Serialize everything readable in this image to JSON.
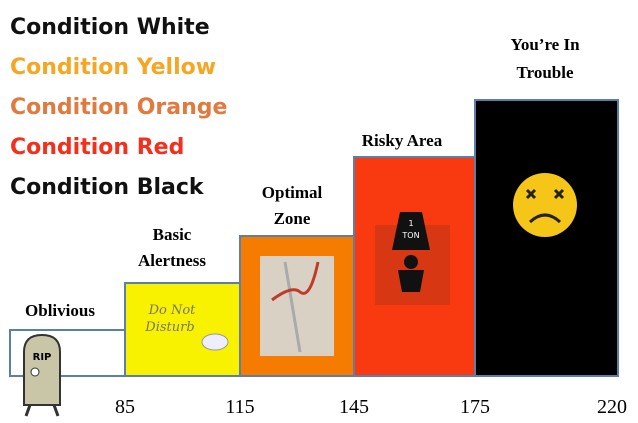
{
  "legend": [
    {
      "text": "Condition White",
      "color": "#111111"
    },
    {
      "text": "Condition Yellow",
      "color": "#f5a623"
    },
    {
      "text": "Condition Orange",
      "color": "#e07a3e"
    },
    {
      "text": "Condition Red",
      "color": "#f4301c"
    },
    {
      "text": "Condition Black",
      "color": "#111111"
    }
  ],
  "zones": [
    {
      "label": [
        "Oblivious"
      ],
      "color": "#ffffff"
    },
    {
      "label": [
        "Basic",
        "Alertness"
      ],
      "color": "#f8f100"
    },
    {
      "label": [
        "Optimal",
        "Zone"
      ],
      "color": "#f57c00"
    },
    {
      "label": [
        "Risky Area"
      ],
      "color": "#f93a10"
    },
    {
      "label": [
        "You’re In",
        "Trouble"
      ],
      "color": "#000000"
    }
  ],
  "ticks": [
    85,
    115,
    145,
    175,
    220
  ],
  "images": {
    "tombstone": "RIP",
    "sign": [
      "Do Not",
      "Disturb"
    ],
    "weight": [
      "1",
      "TON"
    ]
  }
}
